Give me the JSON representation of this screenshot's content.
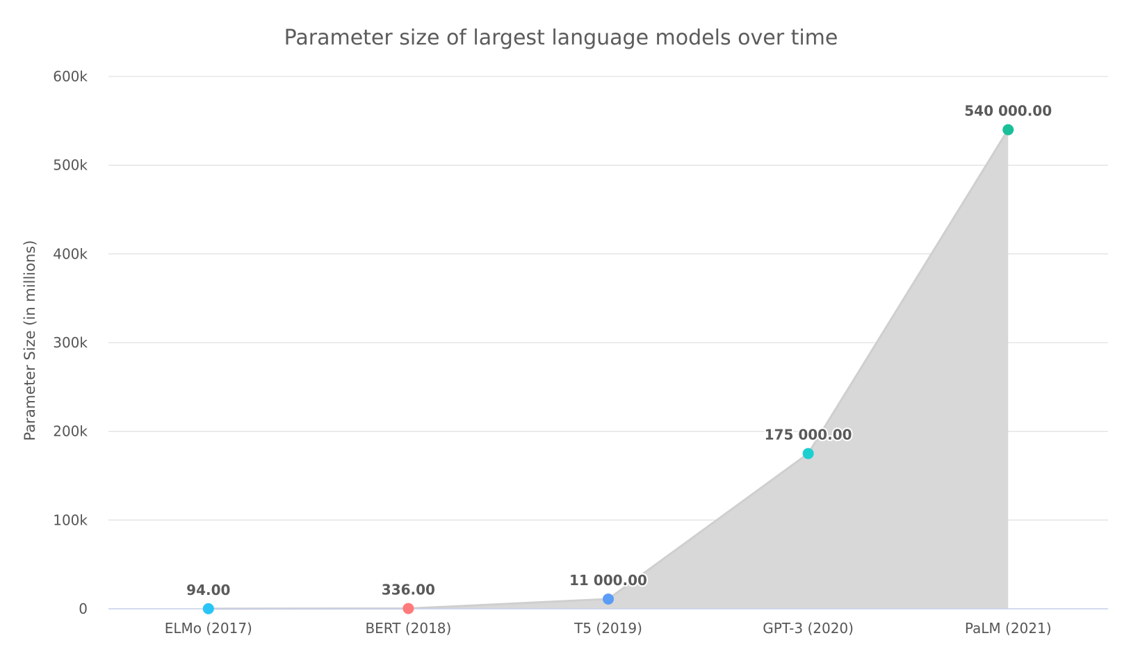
{
  "chart_data": {
    "type": "area",
    "title": "Parameter size of largest language models over time",
    "xlabel": "",
    "ylabel": "Parameter Size (in millions)",
    "categories": [
      "ELMo (2017)",
      "BERT (2018)",
      "T5 (2019)",
      "GPT-3 (2020)",
      "PaLM (2021)"
    ],
    "series": [
      {
        "values": [
          94,
          336,
          11000,
          175000,
          540000
        ],
        "data_labels": [
          "94.00",
          "336.00",
          "11 000.00",
          "175 000.00",
          "540 000.00"
        ],
        "point_colors": [
          "#29c5f6",
          "#ff7a7a",
          "#5b9cf6",
          "#1ccfd1",
          "#19bf98"
        ],
        "area_color": "#d8d8d8"
      }
    ],
    "ylim": [
      0,
      600000
    ],
    "yticks": [
      0,
      100000,
      200000,
      300000,
      400000,
      500000,
      600000
    ],
    "ytick_labels": [
      "0",
      "100k",
      "200k",
      "300k",
      "400k",
      "500k",
      "600k"
    ],
    "grid": true,
    "legend": "none"
  }
}
